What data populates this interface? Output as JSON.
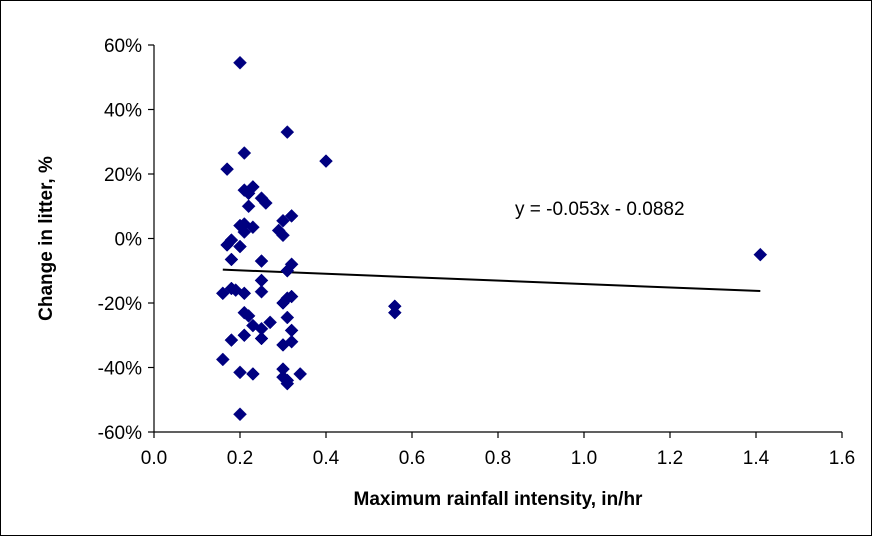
{
  "chart_data": {
    "type": "scatter",
    "title": "",
    "xlabel": "Maximum rainfall intensity, in/hr",
    "ylabel": "Change in litter, %",
    "xlim": [
      0.0,
      1.6
    ],
    "ylim": [
      -0.6,
      0.6
    ],
    "x_ticks": [
      0.0,
      0.2,
      0.4,
      0.6,
      0.8,
      1.0,
      1.2,
      1.4,
      1.6
    ],
    "x_tick_labels": [
      "0.0",
      "0.2",
      "0.4",
      "0.6",
      "0.8",
      "1.0",
      "1.2",
      "1.4",
      "1.6"
    ],
    "y_ticks": [
      0.6,
      0.4,
      0.2,
      0.0,
      -0.2,
      -0.4,
      -0.6
    ],
    "y_tick_labels": [
      "60%",
      "40%",
      "20%",
      "0%",
      "-20%",
      "-40%",
      "-60%"
    ],
    "grid": false,
    "legend": "none",
    "marker_color": "#000080",
    "trendline": {
      "equation": "y = -0.053x - 0.0882",
      "slope": -0.053,
      "intercept": -0.0882,
      "x_range": [
        0.16,
        1.41
      ],
      "color": "#000000"
    },
    "points": [
      {
        "x": 0.2,
        "y": 0.545
      },
      {
        "x": 0.31,
        "y": 0.33
      },
      {
        "x": 0.21,
        "y": 0.265
      },
      {
        "x": 0.4,
        "y": 0.24
      },
      {
        "x": 0.17,
        "y": 0.215
      },
      {
        "x": 0.23,
        "y": 0.16
      },
      {
        "x": 0.21,
        "y": 0.15
      },
      {
        "x": 0.22,
        "y": 0.14
      },
      {
        "x": 0.25,
        "y": 0.125
      },
      {
        "x": 0.26,
        "y": 0.11
      },
      {
        "x": 0.22,
        "y": 0.1
      },
      {
        "x": 0.32,
        "y": 0.07
      },
      {
        "x": 0.3,
        "y": 0.055
      },
      {
        "x": 0.21,
        "y": 0.045
      },
      {
        "x": 0.2,
        "y": 0.04
      },
      {
        "x": 0.23,
        "y": 0.035
      },
      {
        "x": 0.29,
        "y": 0.025
      },
      {
        "x": 0.21,
        "y": 0.02
      },
      {
        "x": 0.3,
        "y": 0.01
      },
      {
        "x": 0.18,
        "y": -0.005
      },
      {
        "x": 0.17,
        "y": -0.02
      },
      {
        "x": 0.2,
        "y": -0.025
      },
      {
        "x": 0.18,
        "y": -0.065
      },
      {
        "x": 0.25,
        "y": -0.07
      },
      {
        "x": 0.32,
        "y": -0.08
      },
      {
        "x": 0.31,
        "y": -0.1
      },
      {
        "x": 0.25,
        "y": -0.13
      },
      {
        "x": 0.18,
        "y": -0.155
      },
      {
        "x": 0.19,
        "y": -0.16
      },
      {
        "x": 0.25,
        "y": -0.165
      },
      {
        "x": 0.16,
        "y": -0.17
      },
      {
        "x": 0.21,
        "y": -0.17
      },
      {
        "x": 0.32,
        "y": -0.18
      },
      {
        "x": 0.31,
        "y": -0.185
      },
      {
        "x": 0.3,
        "y": -0.2
      },
      {
        "x": 0.56,
        "y": -0.21
      },
      {
        "x": 0.56,
        "y": -0.23
      },
      {
        "x": 0.21,
        "y": -0.23
      },
      {
        "x": 0.22,
        "y": -0.24
      },
      {
        "x": 0.31,
        "y": -0.245
      },
      {
        "x": 0.27,
        "y": -0.26
      },
      {
        "x": 0.23,
        "y": -0.27
      },
      {
        "x": 0.25,
        "y": -0.28
      },
      {
        "x": 0.32,
        "y": -0.285
      },
      {
        "x": 0.21,
        "y": -0.3
      },
      {
        "x": 0.25,
        "y": -0.31
      },
      {
        "x": 0.18,
        "y": -0.315
      },
      {
        "x": 0.32,
        "y": -0.32
      },
      {
        "x": 0.3,
        "y": -0.33
      },
      {
        "x": 0.16,
        "y": -0.375
      },
      {
        "x": 0.3,
        "y": -0.405
      },
      {
        "x": 0.2,
        "y": -0.415
      },
      {
        "x": 0.23,
        "y": -0.42
      },
      {
        "x": 0.34,
        "y": -0.42
      },
      {
        "x": 0.3,
        "y": -0.43
      },
      {
        "x": 0.31,
        "y": -0.44
      },
      {
        "x": 0.31,
        "y": -0.45
      },
      {
        "x": 0.2,
        "y": -0.545
      },
      {
        "x": 1.41,
        "y": -0.05
      }
    ]
  }
}
